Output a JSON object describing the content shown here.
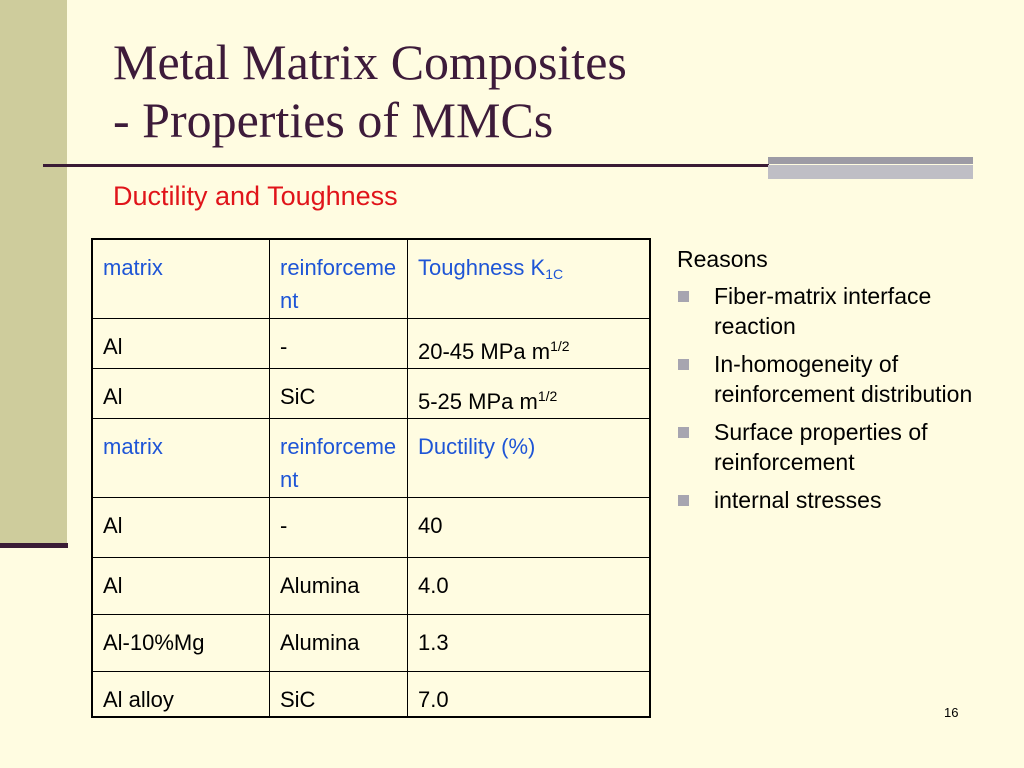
{
  "slide": {
    "title_line1": "Metal Matrix Composites",
    "title_line2": "- Properties of MMCs",
    "subtitle": "Ductility and Toughness",
    "page_number": "16"
  },
  "table": {
    "toughness_header": [
      "matrix",
      "reinforcement",
      "Toughness K",
      "1C"
    ],
    "toughness_rows": [
      [
        "Al",
        "-",
        "20-45 MPa m",
        "1/2"
      ],
      [
        "Al",
        "SiC",
        "5-25 MPa m",
        "1/2"
      ]
    ],
    "ductility_header": [
      "matrix",
      "reinforcement",
      "Ductility (%)"
    ],
    "ductility_rows": [
      [
        "Al",
        "-",
        "40"
      ],
      [
        "Al",
        "Alumina",
        "4.0"
      ],
      [
        "Al-10%Mg",
        "Alumina",
        "1.3"
      ],
      [
        "Al alloy",
        "SiC",
        "7.0"
      ]
    ]
  },
  "reasons": {
    "heading": "Reasons",
    "items": [
      " Fiber-matrix interface reaction",
      " In-homogeneity of reinforcement distribution",
      "Surface properties of reinforcement",
      " internal stresses"
    ]
  },
  "colors": {
    "title": "#3D1B3A",
    "subtitle": "#E0141A",
    "header_text": "#1E55D6",
    "background": "#FFFCE1"
  }
}
